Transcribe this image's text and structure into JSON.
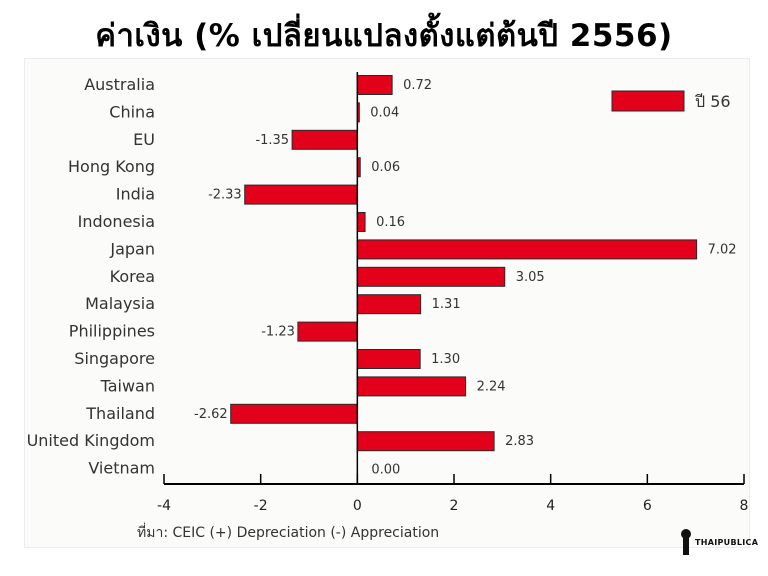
{
  "title": "ค่าเงิน (% เปลี่ยนแปลงตั้งแต่ต้นปี 2556)",
  "source": "ที่มา: CEIC (+) Depreciation (-) Appreciation",
  "logo_text": "THAIPUBLICA",
  "colors": {
    "bar": "#e3001b",
    "bar_edge": "#2a2a2a",
    "axis": "#000000"
  },
  "chart_data": {
    "type": "bar",
    "orientation": "horizontal",
    "categories": [
      "Australia",
      "China",
      "EU",
      "Hong Kong",
      "India",
      "Indonesia",
      "Japan",
      "Korea",
      "Malaysia",
      "Philippines",
      "Singapore",
      "Taiwan",
      "Thailand",
      "United Kingdom",
      "Vietnam"
    ],
    "series": [
      {
        "name": "ปี 56",
        "values": [
          0.72,
          0.04,
          -1.35,
          0.06,
          -2.33,
          0.16,
          7.02,
          3.05,
          1.31,
          -1.23,
          1.3,
          2.24,
          -2.62,
          2.83,
          0.0
        ]
      }
    ],
    "value_labels": [
      "0.72",
      "0.04",
      "-1.35",
      "0.06",
      "-2.33",
      "0.16",
      "7.02",
      "3.05",
      "1.31",
      "-1.23",
      "1.30",
      "2.24",
      "-2.62",
      "2.83",
      "0.00"
    ],
    "xlim": [
      -4,
      8
    ],
    "xticks": [
      -4,
      -2,
      0,
      2,
      4,
      6,
      8
    ],
    "title": "ค่าเงิน (% เปลี่ยนแปลงตั้งแต่ต้นปี 2556)",
    "xlabel": "",
    "ylabel": "",
    "legend_position": "top-right",
    "grid": false
  }
}
